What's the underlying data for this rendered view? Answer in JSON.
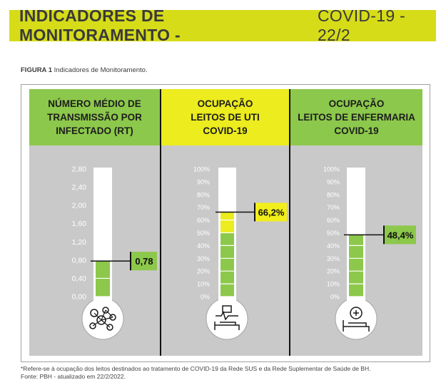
{
  "banner": {
    "title_bold": "INDICADORES DE MONITORAMENTO -",
    "title_rest": "COVID-19 - 22/2"
  },
  "figure": {
    "label": "FIGURA 1",
    "caption": "Indicadores de Monitoramento."
  },
  "colors": {
    "banner": "#d6dc18",
    "green": "#8cc84b",
    "yellow": "#ecec1e",
    "panel_bg": "#c9c9c9",
    "value_green": "#8cc84b",
    "value_yellow": "#f2ee1a"
  },
  "panels": [
    {
      "title_lines": [
        "NÚMERO MÉDIO DE",
        "TRANSMISSÃO POR",
        "INFECTADO (RT)"
      ],
      "header_color": "#8cc84b",
      "icon": "virus-network-icon"
    },
    {
      "title_lines": [
        "OCUPAÇÃO",
        "LEITOS DE UTI",
        "COVID-19"
      ],
      "header_color": "#ecec1e",
      "icon": "icu-bed-icon"
    },
    {
      "title_lines": [
        "OCUPAÇÃO",
        "LEITOS DE ENFERMARIA",
        "COVID-19"
      ],
      "header_color": "#8cc84b",
      "icon": "ward-bed-icon"
    }
  ],
  "chart_data": [
    {
      "type": "bar",
      "title": "NÚMERO MÉDIO DE TRANSMISSÃO POR INFECTADO (RT)",
      "ticks": [
        "0,00",
        "0,40",
        "0,80",
        "1,20",
        "1,60",
        "2,00",
        "2,40",
        "2,80"
      ],
      "ylim": [
        0,
        2.8
      ],
      "value": 0.78,
      "value_label": "0,78",
      "fill_segments": [
        {
          "from": 0,
          "to": 0.78,
          "color": "#8cc84b"
        }
      ]
    },
    {
      "type": "bar",
      "title": "OCUPAÇÃO LEITOS DE UTI COVID-19",
      "ticks": [
        "0%",
        "10%",
        "20%",
        "30%",
        "40%",
        "50%",
        "60%",
        "70%",
        "80%",
        "90%",
        "100%"
      ],
      "ylim": [
        0,
        100
      ],
      "value": 66.2,
      "value_label": "66,2%",
      "fill_segments": [
        {
          "from": 0,
          "to": 50,
          "color": "#8cc84b"
        },
        {
          "from": 50,
          "to": 66.2,
          "color": "#ecec1e"
        }
      ]
    },
    {
      "type": "bar",
      "title": "OCUPAÇÃO LEITOS DE ENFERMARIA COVID-19",
      "ticks": [
        "0%",
        "10%",
        "20%",
        "30%",
        "40%",
        "50%",
        "60%",
        "70%",
        "80%",
        "90%",
        "100%"
      ],
      "ylim": [
        0,
        100
      ],
      "value": 48.4,
      "value_label": "48,4%",
      "fill_segments": [
        {
          "from": 0,
          "to": 48.4,
          "color": "#8cc84b"
        }
      ]
    }
  ],
  "footnote": {
    "line1": "*Refere-se à ocupação dos leitos destinados ao tratamento de COVID-19 da Rede SUS e da Rede Suplementar de Saúde de BH.",
    "line2": "Fonte: PBH - atualizado em 22/2/2022."
  }
}
